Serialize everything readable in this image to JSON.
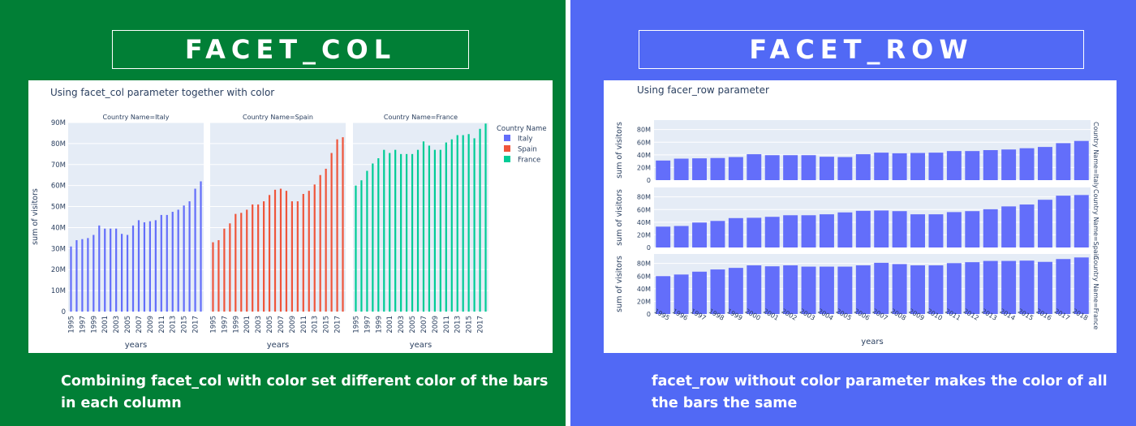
{
  "left_panel": {
    "heading": "FACET_COL",
    "caption": "Combining facet_col with color set different color of the bars in each column",
    "background": "#017f36"
  },
  "right_panel": {
    "heading": "FACET_ROW",
    "caption": "facet_row without color parameter makes the color of all the bars the same",
    "background": "#5169f5"
  },
  "chart_data": [
    {
      "type": "bar",
      "layout": "facet_col",
      "title": "Using facet_col parameter together with color",
      "xlabel": "years",
      "ylabel": "sum of visitors",
      "ylim": [
        0,
        90000000
      ],
      "yticks": [
        0,
        10000000,
        20000000,
        30000000,
        40000000,
        50000000,
        60000000,
        70000000,
        80000000,
        90000000
      ],
      "ytick_labels": [
        "0",
        "10M",
        "20M",
        "30M",
        "40M",
        "50M",
        "60M",
        "70M",
        "80M",
        "90M"
      ],
      "xtick_labels": [
        "1995",
        "1997",
        "1999",
        "2001",
        "2003",
        "2005",
        "2007",
        "2009",
        "2011",
        "2013",
        "2015",
        "2017"
      ],
      "legend_title": "Country Name",
      "legend_position": "right",
      "x": [
        1995,
        1996,
        1997,
        1998,
        1999,
        2000,
        2001,
        2002,
        2003,
        2004,
        2005,
        2006,
        2007,
        2008,
        2009,
        2010,
        2011,
        2012,
        2013,
        2014,
        2015,
        2016,
        2017,
        2018
      ],
      "series": [
        {
          "name": "Italy",
          "facet_label": "Country Name=Italy",
          "color": "#636efa",
          "values": [
            31.0,
            34.0,
            34.5,
            35.0,
            36.5,
            41.0,
            39.5,
            39.5,
            39.5,
            37.0,
            36.5,
            41.0,
            43.5,
            42.5,
            43.0,
            43.5,
            46.0,
            46.0,
            47.5,
            48.5,
            50.5,
            52.5,
            58.5,
            62.0
          ]
        },
        {
          "name": "Spain",
          "facet_label": "Country Name=Spain",
          "color": "#ef553b",
          "values": [
            33.0,
            34.0,
            39.5,
            42.0,
            46.5,
            47.0,
            48.5,
            51.0,
            51.0,
            52.5,
            55.5,
            58.0,
            58.5,
            57.5,
            52.5,
            52.5,
            56.0,
            57.5,
            60.5,
            65.0,
            68.0,
            75.5,
            82.0,
            83.0
          ]
        },
        {
          "name": "France",
          "facet_label": "Country Name=France",
          "color": "#00cc96",
          "values": [
            60.0,
            62.5,
            67.0,
            70.5,
            73.0,
            77.0,
            75.5,
            77.0,
            75.0,
            75.0,
            75.0,
            77.0,
            81.0,
            79.0,
            77.0,
            77.0,
            80.5,
            82.0,
            84.0,
            84.0,
            84.5,
            82.5,
            87.0,
            89.5
          ]
        }
      ]
    },
    {
      "type": "bar",
      "layout": "facet_row",
      "title": "Using facer_row parameter",
      "xlabel": "years",
      "ylabel": "sum of visitors",
      "ylim": [
        0,
        95
      ],
      "yticks": [
        0,
        20,
        40,
        60,
        80
      ],
      "ytick_labels": [
        "0",
        "20M",
        "40M",
        "60M",
        "80M"
      ],
      "color": "#636efa",
      "x": [
        1995,
        1996,
        1997,
        1998,
        1999,
        2000,
        2001,
        2002,
        2003,
        2004,
        2005,
        2006,
        2007,
        2008,
        2009,
        2010,
        2011,
        2012,
        2013,
        2014,
        2015,
        2016,
        2017,
        2018
      ],
      "xtick_labels": [
        "1995",
        "1996",
        "1997",
        "1998",
        "1999",
        "2000",
        "2001",
        "2002",
        "2003",
        "2004",
        "2005",
        "2006",
        "2007",
        "2008",
        "2009",
        "2010",
        "2011",
        "2012",
        "2013",
        "2014",
        "2015",
        "2016",
        "2017",
        "2018"
      ],
      "series": [
        {
          "facet_label": "Country Name=Italy",
          "values": [
            31.0,
            34.0,
            34.5,
            35.0,
            36.5,
            41.0,
            39.5,
            39.5,
            39.5,
            37.0,
            36.5,
            41.0,
            43.5,
            42.5,
            43.0,
            43.5,
            46.0,
            46.0,
            47.5,
            48.5,
            50.5,
            52.5,
            58.5,
            62.0
          ]
        },
        {
          "facet_label": "Country Name=Spain",
          "values": [
            33.0,
            34.0,
            39.5,
            42.0,
            46.5,
            47.0,
            48.5,
            51.0,
            51.0,
            52.5,
            55.5,
            58.0,
            58.5,
            57.5,
            52.5,
            52.5,
            56.0,
            57.5,
            60.5,
            65.0,
            68.0,
            75.5,
            82.0,
            83.0
          ]
        },
        {
          "facet_label": "Country Name=France",
          "values": [
            60.0,
            62.5,
            67.0,
            70.5,
            73.0,
            77.0,
            75.5,
            77.0,
            75.0,
            75.0,
            75.0,
            77.0,
            81.0,
            79.0,
            77.0,
            77.0,
            80.5,
            82.0,
            84.0,
            84.0,
            84.5,
            82.5,
            87.0,
            89.5
          ]
        }
      ]
    }
  ]
}
